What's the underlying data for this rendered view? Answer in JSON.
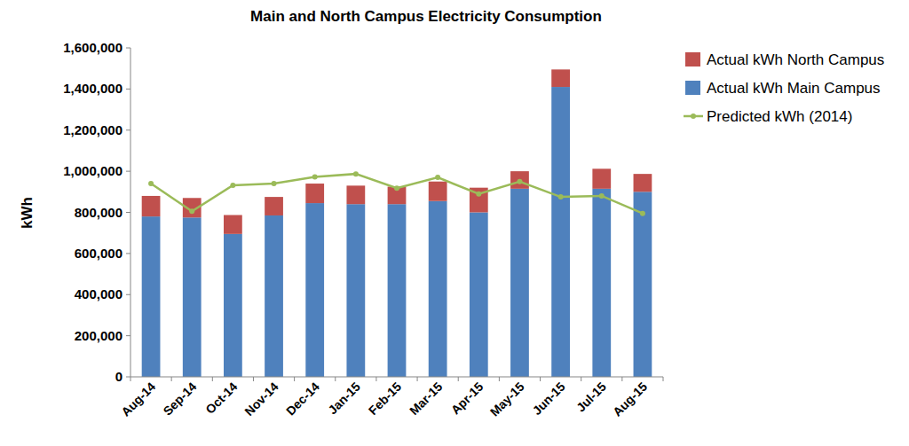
{
  "chart_data": {
    "type": "bar",
    "stacked": true,
    "title": "Main and North Campus Electricity Consumption",
    "y_label": "kWh",
    "categories": [
      "Aug-14",
      "Sep-14",
      "Oct-14",
      "Nov-14",
      "Dec-14",
      "Jan-15",
      "Feb-15",
      "Mar-15",
      "Apr-15",
      "May-15",
      "Jun-15",
      "Jul-15",
      "Aug-15"
    ],
    "series": [
      {
        "name": "Actual kWh Main Campus",
        "color": "#4f81bd",
        "type": "bar",
        "values": [
          780000,
          775000,
          695000,
          785000,
          845000,
          840000,
          840000,
          855000,
          800000,
          915000,
          1410000,
          915000,
          900000
        ]
      },
      {
        "name": "Actual kWh North Campus",
        "color": "#c0504d",
        "type": "bar",
        "values": [
          100000,
          95000,
          92000,
          90000,
          95000,
          90000,
          85000,
          95000,
          120000,
          85000,
          85000,
          97000,
          87000
        ]
      },
      {
        "name": "Predicted kWh (2014)",
        "color": "#9bbb59",
        "type": "line",
        "marker": "circle",
        "line_style": "solid",
        "values": [
          940000,
          805000,
          932000,
          940000,
          972000,
          987000,
          918000,
          970000,
          890000,
          950000,
          875000,
          880000,
          795000
        ]
      }
    ],
    "ylim": [
      0,
      1600000
    ],
    "yticks": [
      0,
      {
        "value": 200000,
        "label": "200,000"
      },
      {
        "value": 400000,
        "label": "400,000"
      },
      {
        "value": 600000,
        "label": "600,000"
      },
      {
        "value": 800000,
        "label": "800,000"
      },
      {
        "value": 1000000,
        "label": "1,000,000"
      },
      {
        "value": 1200000,
        "label": "1,200,000"
      },
      {
        "value": 1400000,
        "label": "1,400,000"
      },
      {
        "value": 1600000,
        "label": "1,600,000"
      }
    ],
    "grid": false,
    "legend": "right"
  }
}
